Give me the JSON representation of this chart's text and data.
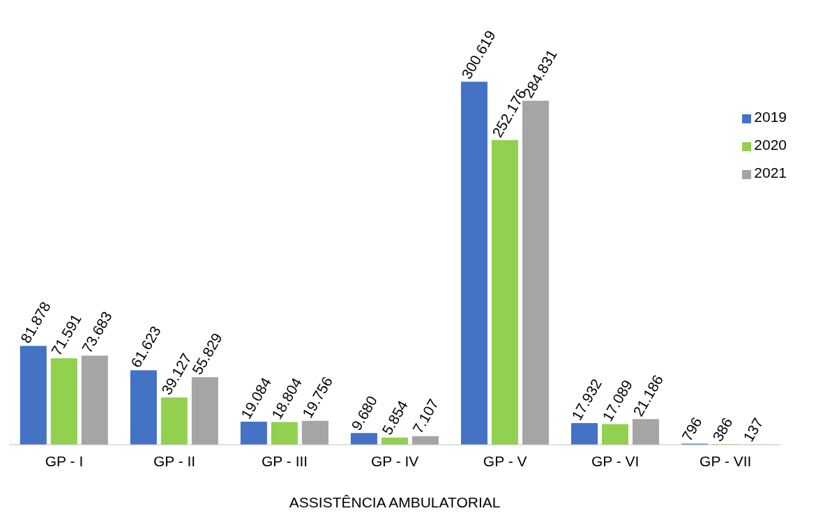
{
  "chart_data": {
    "type": "bar",
    "xlabel": "ASSISTÊNCIA AMBULATORIAL",
    "categories": [
      "GP - I",
      "GP - II",
      "GP - III",
      "GP - IV",
      "GP - V",
      "GP - VI",
      "GP - VII"
    ],
    "legend": "right",
    "series": [
      {
        "name": "2019",
        "color": "#4472c4",
        "values": [
          81878,
          61623,
          19084,
          9680,
          300619,
          17932,
          796
        ],
        "value_labels": [
          "81.878",
          "61.623",
          "19.084",
          "9.680",
          "300.619",
          "17.932",
          "796"
        ]
      },
      {
        "name": "2020",
        "color": "#92d050",
        "values": [
          71591,
          39127,
          18804,
          5854,
          252176,
          17089,
          386
        ],
        "value_labels": [
          "71.591",
          "39.127",
          "18.804",
          "5.854",
          "252.176",
          "17.089",
          "386"
        ]
      },
      {
        "name": "2021",
        "color": "#a5a5a5",
        "values": [
          73683,
          55829,
          19756,
          7107,
          284831,
          21186,
          137
        ],
        "value_labels": [
          "73.683",
          "55.829",
          "19.756",
          "7.107",
          "284.831",
          "21.186",
          "137"
        ]
      }
    ]
  }
}
